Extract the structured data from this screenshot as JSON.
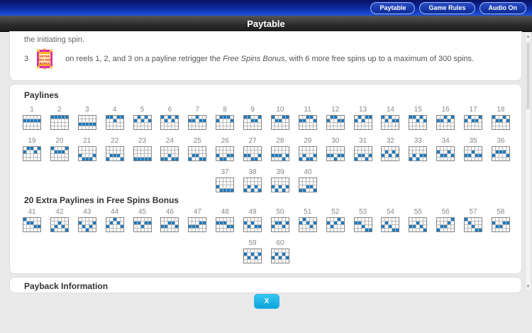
{
  "top_bar": {
    "buttons": [
      {
        "label": "Paytable"
      },
      {
        "label": "Game Rules"
      },
      {
        "label": "Audio On"
      }
    ]
  },
  "title_bar": {
    "title": "Paytable"
  },
  "intro": {
    "trailing_line": "the initiating spin.",
    "bonus_count": "3",
    "bonus_icon": "extra-paylines-bonus-symbol",
    "bonus_icon_text": [
      "EXTRA",
      "PAYLINES",
      "BONUS"
    ],
    "text_before": "on reels 1, 2, and 3 on a payline retrigger the ",
    "text_italic": "Free Spins Bonus",
    "text_after": ", with 6 more free spins up to a maximum of 300 spins."
  },
  "paylines_section": {
    "heading": "Paylines",
    "extra_heading": "20 Extra Paylines in Free Spins Bonus",
    "grid": {
      "reels": 5,
      "rows": 4
    },
    "colors": {
      "line": "#1b7ac0",
      "cell": "#ffffff",
      "gridline": "#b8b8b8",
      "border": "#838383"
    },
    "paylines": [
      {
        "number": 1,
        "pattern": [
          1,
          1,
          1,
          1,
          1
        ]
      },
      {
        "number": 2,
        "pattern": [
          0,
          0,
          0,
          0,
          0
        ]
      },
      {
        "number": 3,
        "pattern": [
          2,
          2,
          2,
          2,
          2
        ]
      },
      {
        "number": 4,
        "pattern": [
          0,
          0,
          1,
          0,
          0
        ]
      },
      {
        "number": 5,
        "pattern": [
          1,
          0,
          1,
          0,
          1
        ]
      },
      {
        "number": 6,
        "pattern": [
          0,
          1,
          0,
          1,
          0
        ]
      },
      {
        "number": 7,
        "pattern": [
          1,
          1,
          0,
          1,
          1
        ]
      },
      {
        "number": 8,
        "pattern": [
          1,
          0,
          0,
          0,
          1
        ]
      },
      {
        "number": 9,
        "pattern": [
          0,
          0,
          1,
          1,
          0
        ]
      },
      {
        "number": 10,
        "pattern": [
          0,
          1,
          1,
          0,
          0
        ]
      },
      {
        "number": 11,
        "pattern": [
          1,
          1,
          0,
          0,
          1
        ]
      },
      {
        "number": 12,
        "pattern": [
          1,
          0,
          0,
          1,
          1
        ]
      },
      {
        "number": 13,
        "pattern": [
          1,
          0,
          1,
          0,
          0
        ]
      },
      {
        "number": 14,
        "pattern": [
          0,
          1,
          0,
          1,
          1
        ]
      },
      {
        "number": 15,
        "pattern": [
          0,
          0,
          1,
          0,
          1
        ]
      },
      {
        "number": 16,
        "pattern": [
          1,
          1,
          0,
          1,
          0
        ]
      },
      {
        "number": 17,
        "pattern": [
          1,
          0,
          1,
          1,
          0
        ]
      },
      {
        "number": 18,
        "pattern": [
          0,
          1,
          1,
          0,
          1
        ]
      },
      {
        "number": 19,
        "pattern": [
          1,
          0,
          0,
          1,
          0
        ]
      },
      {
        "number": 20,
        "pattern": [
          0,
          1,
          1,
          1,
          0
        ]
      },
      {
        "number": 21,
        "pattern": [
          2,
          3,
          3,
          3,
          2
        ]
      },
      {
        "number": 22,
        "pattern": [
          3,
          2,
          2,
          2,
          3
        ]
      },
      {
        "number": 23,
        "pattern": [
          3,
          3,
          3,
          3,
          3
        ]
      },
      {
        "number": 24,
        "pattern": [
          3,
          3,
          2,
          3,
          3
        ]
      },
      {
        "number": 25,
        "pattern": [
          3,
          2,
          2,
          3,
          3
        ]
      },
      {
        "number": 26,
        "pattern": [
          2,
          3,
          3,
          2,
          2
        ]
      },
      {
        "number": 27,
        "pattern": [
          2,
          2,
          3,
          3,
          2
        ]
      },
      {
        "number": 28,
        "pattern": [
          2,
          2,
          2,
          3,
          2
        ]
      },
      {
        "number": 29,
        "pattern": [
          3,
          2,
          3,
          3,
          2
        ]
      },
      {
        "number": 30,
        "pattern": [
          2,
          2,
          3,
          2,
          2
        ]
      },
      {
        "number": 31,
        "pattern": [
          3,
          2,
          2,
          3,
          2
        ]
      },
      {
        "number": 32,
        "pattern": [
          2,
          1,
          2,
          1,
          2
        ]
      },
      {
        "number": 33,
        "pattern": [
          3,
          2,
          3,
          2,
          2
        ]
      },
      {
        "number": 34,
        "pattern": [
          1,
          2,
          2,
          1,
          2
        ]
      },
      {
        "number": 35,
        "pattern": [
          2,
          2,
          1,
          2,
          2
        ]
      },
      {
        "number": 36,
        "pattern": [
          2,
          1,
          1,
          1,
          2
        ]
      },
      {
        "number": 37,
        "pattern": [
          2,
          3,
          3,
          3,
          3
        ]
      },
      {
        "number": 38,
        "pattern": [
          3,
          2,
          3,
          2,
          3
        ]
      },
      {
        "number": 39,
        "pattern": [
          2,
          3,
          2,
          3,
          2
        ]
      },
      {
        "number": 40,
        "pattern": [
          3,
          3,
          2,
          2,
          3
        ]
      }
    ],
    "extra_paylines": [
      {
        "number": 41,
        "pattern": [
          0,
          1,
          1,
          2,
          2
        ]
      },
      {
        "number": 42,
        "pattern": [
          3,
          2,
          1,
          2,
          3
        ]
      },
      {
        "number": 43,
        "pattern": [
          1,
          2,
          3,
          2,
          1
        ]
      },
      {
        "number": 44,
        "pattern": [
          2,
          1,
          0,
          1,
          2
        ]
      },
      {
        "number": 45,
        "pattern": [
          1,
          1,
          2,
          1,
          1
        ]
      },
      {
        "number": 46,
        "pattern": [
          2,
          2,
          1,
          1,
          2
        ]
      },
      {
        "number": 47,
        "pattern": [
          2,
          2,
          2,
          1,
          1
        ]
      },
      {
        "number": 48,
        "pattern": [
          1,
          1,
          1,
          2,
          2
        ]
      },
      {
        "number": 49,
        "pattern": [
          1,
          2,
          1,
          2,
          2
        ]
      },
      {
        "number": 50,
        "pattern": [
          2,
          1,
          1,
          2,
          1
        ]
      },
      {
        "number": 51,
        "pattern": [
          1,
          0,
          1,
          2,
          1
        ]
      },
      {
        "number": 52,
        "pattern": [
          1,
          2,
          1,
          0,
          1
        ]
      },
      {
        "number": 53,
        "pattern": [
          1,
          1,
          2,
          3,
          3
        ]
      },
      {
        "number": 54,
        "pattern": [
          2,
          1,
          2,
          3,
          3
        ]
      },
      {
        "number": 55,
        "pattern": [
          2,
          2,
          1,
          2,
          3
        ]
      },
      {
        "number": 56,
        "pattern": [
          3,
          2,
          2,
          1,
          0
        ]
      },
      {
        "number": 57,
        "pattern": [
          0,
          1,
          2,
          3,
          3
        ]
      },
      {
        "number": 58,
        "pattern": [
          1,
          2,
          2,
          1,
          1
        ]
      },
      {
        "number": 59,
        "pattern": [
          1,
          2,
          1,
          2,
          1
        ]
      },
      {
        "number": 60,
        "pattern": [
          2,
          1,
          2,
          1,
          2
        ]
      }
    ]
  },
  "payback_section": {
    "heading": "Payback Information"
  },
  "close_button": {
    "label": "X",
    "color": "#18aadd"
  },
  "scrollbar": {
    "up_glyph": "▲",
    "down_glyph": "▼"
  }
}
